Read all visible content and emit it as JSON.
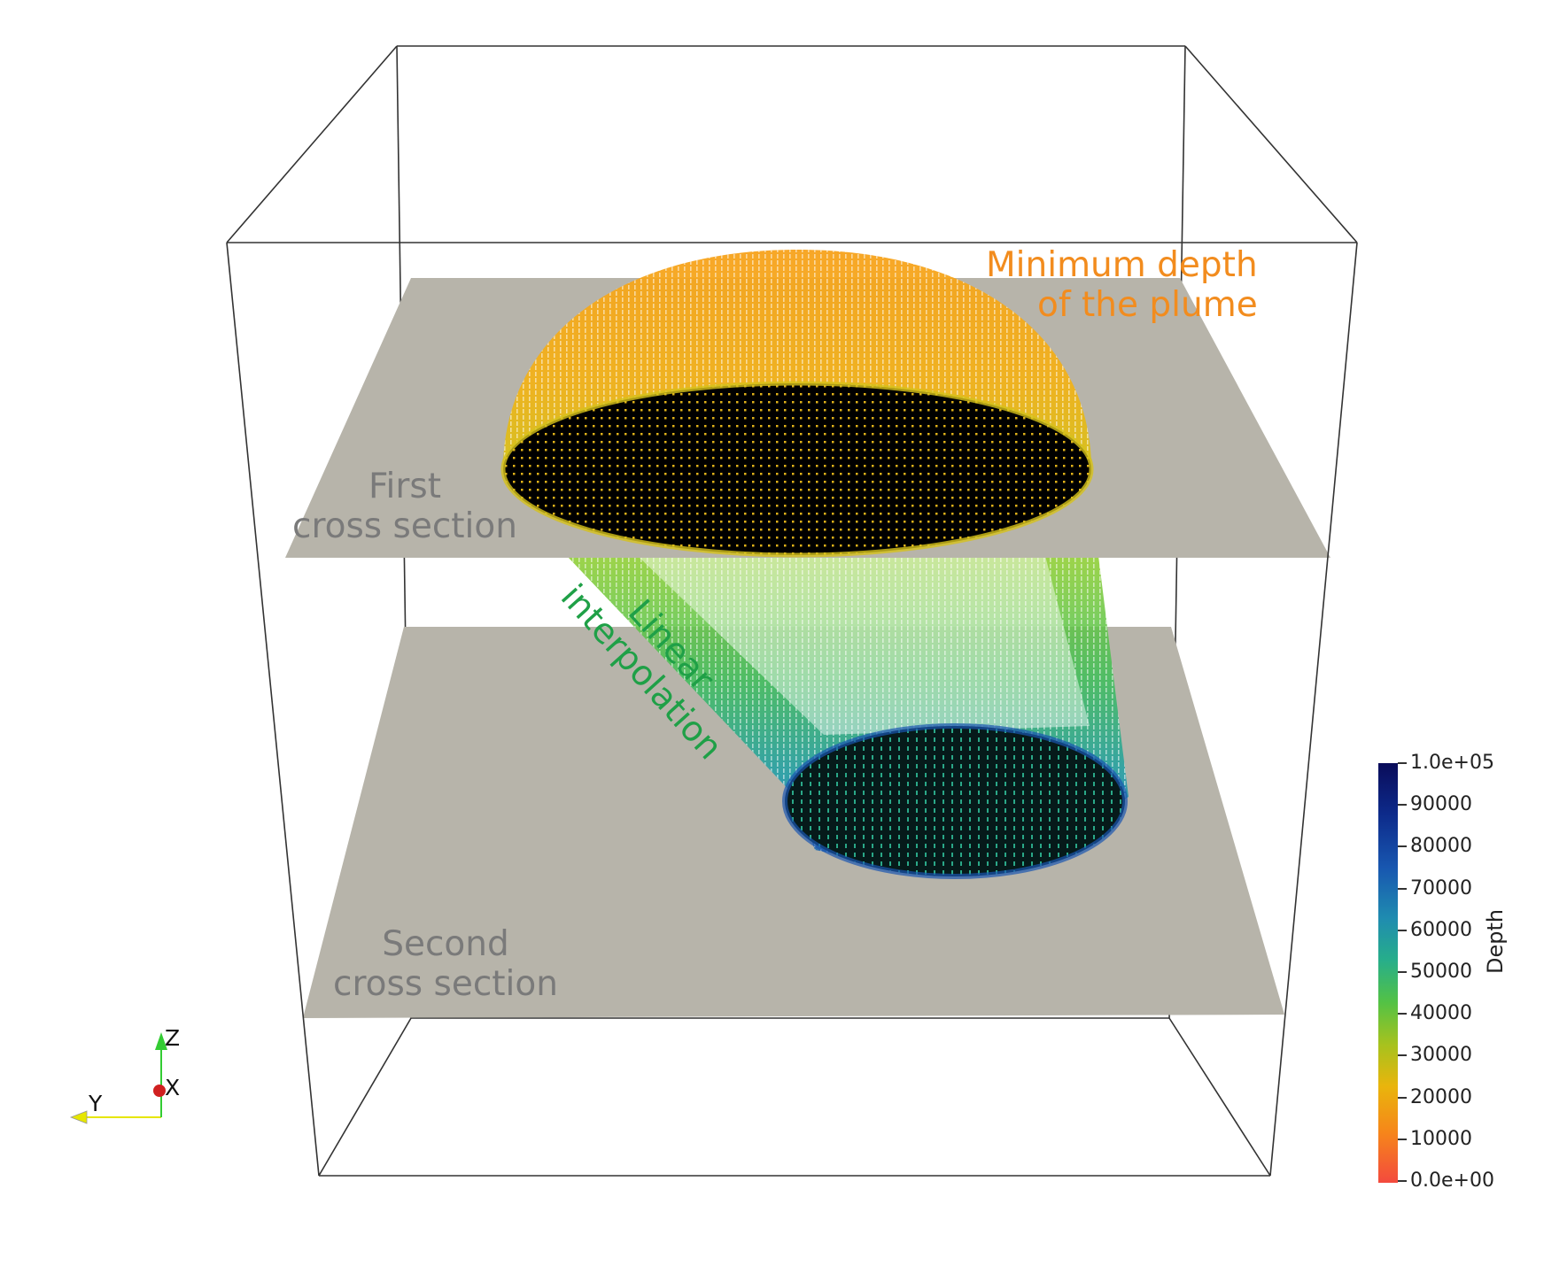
{
  "annotations": {
    "minimum_depth": [
      "Minimum depth",
      "of the plume"
    ],
    "first_section": [
      "First",
      "cross section"
    ],
    "second_section": [
      "Second",
      "cross section"
    ],
    "interpolation": [
      "Linear",
      "interpolation"
    ]
  },
  "colorbar": {
    "title": "Depth",
    "ticks": [
      "1.0e+05",
      "90000",
      "80000",
      "70000",
      "60000",
      "50000",
      "40000",
      "30000",
      "20000",
      "10000",
      "0.0e+00"
    ],
    "range": [
      0,
      100000
    ]
  },
  "axes_triad": {
    "z": "Z",
    "x": "X",
    "y": "Y"
  },
  "colors": {
    "plane": "#b7b4aa",
    "outline": "#333333",
    "minimum_depth_label": "#f28c1e",
    "interpolation_label": "#1fa047",
    "section_label": "#7a7a7a",
    "triad_z": "#33cc33",
    "triad_y": "#e6e600",
    "triad_x": "#d02020"
  }
}
